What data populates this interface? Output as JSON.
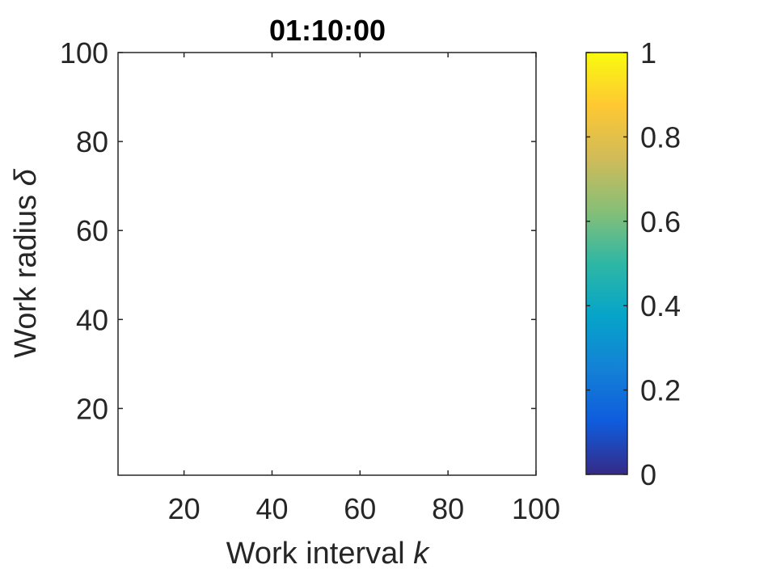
{
  "chart_data": {
    "type": "heatmap",
    "title": "01:10:00",
    "xlabel": "Work interval",
    "xlabel_var": "k",
    "ylabel": "Work radius",
    "ylabel_var": "δ",
    "xlim": [
      5,
      100
    ],
    "ylim": [
      5,
      100
    ],
    "xticks": [
      20,
      40,
      60,
      80,
      100
    ],
    "yticks": [
      20,
      40,
      60,
      80,
      100
    ],
    "xtick_labels": [
      "20",
      "40",
      "60",
      "80",
      "100"
    ],
    "ytick_labels": [
      "20",
      "40",
      "60",
      "80",
      "100"
    ],
    "cells": [],
    "colorbar": {
      "range": [
        0,
        1
      ],
      "ticks": [
        0,
        0.2,
        0.4,
        0.6,
        0.8,
        1
      ],
      "tick_labels": [
        "0",
        "0.2",
        "0.4",
        "0.6",
        "0.8",
        "1"
      ],
      "colormap": "parula",
      "colors": [
        "#352a87",
        "#0f5cdd",
        "#1481d6",
        "#06a4ca",
        "#2eb7a4",
        "#87bf77",
        "#d1bb59",
        "#fec832",
        "#f9fb0e"
      ]
    },
    "grid": false
  }
}
